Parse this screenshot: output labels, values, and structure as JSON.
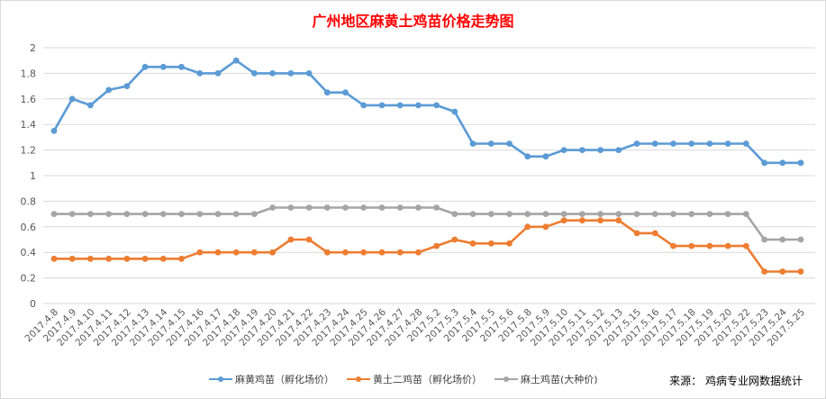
{
  "chart_data": {
    "type": "line",
    "title": "广州地区麻黄土鸡苗价格走势图",
    "xlabel": "",
    "ylabel": "",
    "ylim": [
      0,
      2
    ],
    "yticks": [
      "0",
      "0.2",
      "0.4",
      "0.6",
      "0.8",
      "1",
      "1.2",
      "1.4",
      "1.6",
      "1.8",
      "2"
    ],
    "grid": "horizontal",
    "legend_position": "bottom",
    "categories": [
      "2017.4.8",
      "2017.4.9",
      "2017.4.10",
      "2017.4.11",
      "2017.4.12",
      "2017.4.13",
      "2017.4.14",
      "2017.4.15",
      "2017.4.16",
      "2017.4.17",
      "2017.4.18",
      "2017.4.19",
      "2017.4.20",
      "2017.4.21",
      "2017.4.22",
      "2017.4.23",
      "2017.4.24",
      "2017.4.25",
      "2017.4.26",
      "2017.4.27",
      "2017.4.28",
      "2017.5.2",
      "2017.5.3",
      "2017.5.4",
      "2017.5.5",
      "2017.5.6",
      "2017.5.8",
      "2017.5.9",
      "2017.5.10",
      "2017.5.11",
      "2017.5.12",
      "2017.5.13",
      "2017.5.15",
      "2017.5.16",
      "2017.5.17",
      "2017.5.18",
      "2017.5.19",
      "2017.5.20",
      "2017.5.22",
      "2017.5.23",
      "2017.5.24",
      "2017.5.25"
    ],
    "series": [
      {
        "name": "麻黄鸡苗（孵化场价）",
        "color": "#5b9bd5",
        "values": [
          1.35,
          1.6,
          1.55,
          1.67,
          1.7,
          1.85,
          1.85,
          1.85,
          1.8,
          1.8,
          1.9,
          1.8,
          1.8,
          1.8,
          1.8,
          1.65,
          1.65,
          1.55,
          1.55,
          1.55,
          1.55,
          1.55,
          1.5,
          1.25,
          1.25,
          1.25,
          1.15,
          1.15,
          1.2,
          1.2,
          1.2,
          1.2,
          1.25,
          1.25,
          1.25,
          1.25,
          1.25,
          1.25,
          1.25,
          1.1,
          1.1,
          1.1
        ]
      },
      {
        "name": "黄土二鸡苗（孵化场价）",
        "color": "#ed7d31",
        "values": [
          0.35,
          0.35,
          0.35,
          0.35,
          0.35,
          0.35,
          0.35,
          0.35,
          0.4,
          0.4,
          0.4,
          0.4,
          0.4,
          0.5,
          0.5,
          0.4,
          0.4,
          0.4,
          0.4,
          0.4,
          0.4,
          0.45,
          0.5,
          0.47,
          0.47,
          0.47,
          0.6,
          0.6,
          0.65,
          0.65,
          0.65,
          0.65,
          0.55,
          0.55,
          0.45,
          0.45,
          0.45,
          0.45,
          0.45,
          0.25,
          0.25,
          0.25
        ]
      },
      {
        "name": "麻土鸡苗(大种价)",
        "color": "#a5a5a5",
        "values": [
          0.7,
          0.7,
          0.7,
          0.7,
          0.7,
          0.7,
          0.7,
          0.7,
          0.7,
          0.7,
          0.7,
          0.7,
          0.75,
          0.75,
          0.75,
          0.75,
          0.75,
          0.75,
          0.75,
          0.75,
          0.75,
          0.75,
          0.7,
          0.7,
          0.7,
          0.7,
          0.7,
          0.7,
          0.7,
          0.7,
          0.7,
          0.7,
          0.7,
          0.7,
          0.7,
          0.7,
          0.7,
          0.7,
          0.7,
          0.5,
          0.5,
          0.5
        ]
      }
    ],
    "title_color": "#ff0000"
  },
  "source_note": "来源：  鸡病专业网数据统计"
}
